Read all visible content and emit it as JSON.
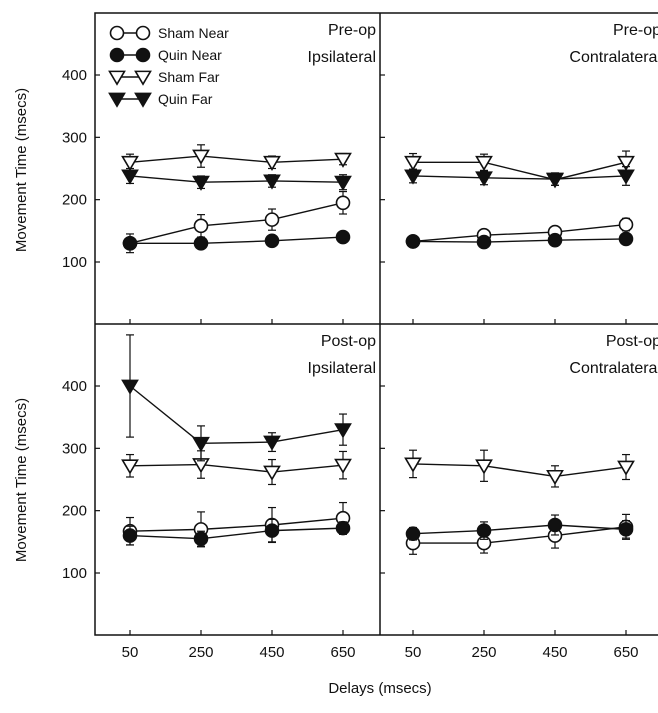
{
  "chart_data": {
    "type": "line",
    "x": [
      50,
      250,
      450,
      650
    ],
    "x_tick_labels": [
      "50",
      "250",
      "450",
      "650"
    ],
    "y_tick_labels": [
      "100",
      "200",
      "300",
      "400"
    ],
    "y_ticks": [
      100,
      200,
      300,
      400
    ],
    "ylim": [
      0,
      500
    ],
    "xlabel": "Delays (msecs)",
    "ylabel": "Movement Time (msecs)",
    "legend": {
      "placement": "top-left",
      "entries": [
        "Sham Near",
        "Quin Near",
        "Sham Far",
        "Quin Far"
      ]
    },
    "series_styles": {
      "Sham Near": {
        "marker": "circle",
        "filled": false
      },
      "Quin Near": {
        "marker": "circle",
        "filled": true
      },
      "Sham Far": {
        "marker": "triangle-down",
        "filled": false
      },
      "Quin Far": {
        "marker": "triangle-down",
        "filled": true
      }
    },
    "panels": [
      {
        "title_line1": "Pre-op",
        "title_line2": "Ipsilateral",
        "series": [
          {
            "name": "Sham Near",
            "values": [
              130,
              158,
              168,
              195
            ],
            "errors": [
              15,
              18,
              17,
              18
            ]
          },
          {
            "name": "Quin Near",
            "values": [
              130,
              130,
              134,
              140
            ],
            "errors": [
              5,
              5,
              5,
              5
            ]
          },
          {
            "name": "Sham Far",
            "values": [
              260,
              270,
              260,
              265
            ],
            "errors": [
              13,
              18,
              10,
              9
            ]
          },
          {
            "name": "Quin Far",
            "values": [
              238,
              228,
              230,
              228
            ],
            "errors": [
              12,
              10,
              10,
              12
            ]
          }
        ]
      },
      {
        "title_line1": "Pre-op",
        "title_line2": "Contralateral",
        "series": [
          {
            "name": "Sham Near",
            "values": [
              133,
              143,
              148,
              160
            ],
            "errors": [
              6,
              8,
              8,
              10
            ]
          },
          {
            "name": "Quin Near",
            "values": [
              133,
              132,
              135,
              137
            ],
            "errors": [
              5,
              6,
              6,
              6
            ]
          },
          {
            "name": "Sham Far",
            "values": [
              260,
              260,
              232,
              260
            ],
            "errors": [
              14,
              13,
              9,
              18
            ]
          },
          {
            "name": "Quin Far",
            "values": [
              238,
              235,
              233,
              238
            ],
            "errors": [
              11,
              11,
              10,
              15
            ]
          }
        ]
      },
      {
        "title_line1": "Post-op",
        "title_line2": "Ipsilateral",
        "series": [
          {
            "name": "Sham Near",
            "values": [
              167,
              170,
              177,
              188
            ],
            "errors": [
              22,
              28,
              28,
              25
            ]
          },
          {
            "name": "Quin Near",
            "values": [
              160,
              155,
              168,
              172
            ],
            "errors": [
              15,
              12,
              18,
              10
            ]
          },
          {
            "name": "Sham Far",
            "values": [
              272,
              274,
              262,
              273
            ],
            "errors": [
              18,
              22,
              20,
              22
            ]
          },
          {
            "name": "Quin Far",
            "values": [
              400,
              308,
              310,
              330
            ],
            "errors": [
              82,
              28,
              15,
              25
            ]
          }
        ]
      },
      {
        "title_line1": "Post-op",
        "title_line2": "Contralateral",
        "series": [
          {
            "name": "Sham Near",
            "values": [
              148,
              148,
              160,
              174
            ],
            "errors": [
              18,
              16,
              20,
              20
            ]
          },
          {
            "name": "Quin Near",
            "values": [
              163,
              168,
              177,
              170
            ],
            "errors": [
              10,
              14,
              16,
              14
            ]
          },
          {
            "name": "Sham Far",
            "values": [
              275,
              272,
              255,
              270
            ],
            "errors": [
              22,
              25,
              17,
              20
            ]
          },
          {
            "name": "Quin Far",
            "values": [],
            "errors": []
          }
        ]
      }
    ]
  }
}
